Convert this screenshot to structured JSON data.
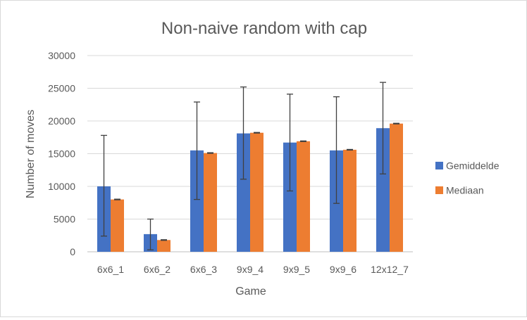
{
  "chart_data": {
    "type": "bar",
    "title": "Non-naive random with cap",
    "xlabel": "Game",
    "ylabel": "Number of moves",
    "categories": [
      "6x6_1",
      "6x6_2",
      "6x6_3",
      "9x9_4",
      "9x9_5",
      "9x9_6",
      "12x12_7"
    ],
    "series": [
      {
        "name": "Gemiddelde",
        "color": "#4472c4",
        "values": [
          10000,
          2700,
          15500,
          18100,
          16700,
          15500,
          18900
        ],
        "error_low": [
          2400,
          300,
          8000,
          11100,
          9300,
          7400,
          11900
        ],
        "error_high": [
          17800,
          5000,
          22900,
          25200,
          24100,
          23700,
          25900
        ]
      },
      {
        "name": "Mediaan",
        "color": "#ed7d31",
        "values": [
          8000,
          1800,
          15100,
          18200,
          16900,
          15600,
          19600
        ],
        "error_low": [
          7950,
          1750,
          15050,
          18150,
          16850,
          15550,
          19550
        ],
        "error_high": [
          8050,
          1850,
          15150,
          18250,
          16950,
          15650,
          19650
        ]
      }
    ],
    "ylim": [
      0,
      30000
    ],
    "yticks": [
      "0",
      "5000",
      "10000",
      "15000",
      "20000",
      "25000",
      "30000"
    ],
    "grid": true,
    "legend_position": "right",
    "colors": {
      "gridline": "#d9d9d9",
      "axis": "#bfbfbf",
      "text": "#595959",
      "error_bar": "#404040"
    }
  }
}
